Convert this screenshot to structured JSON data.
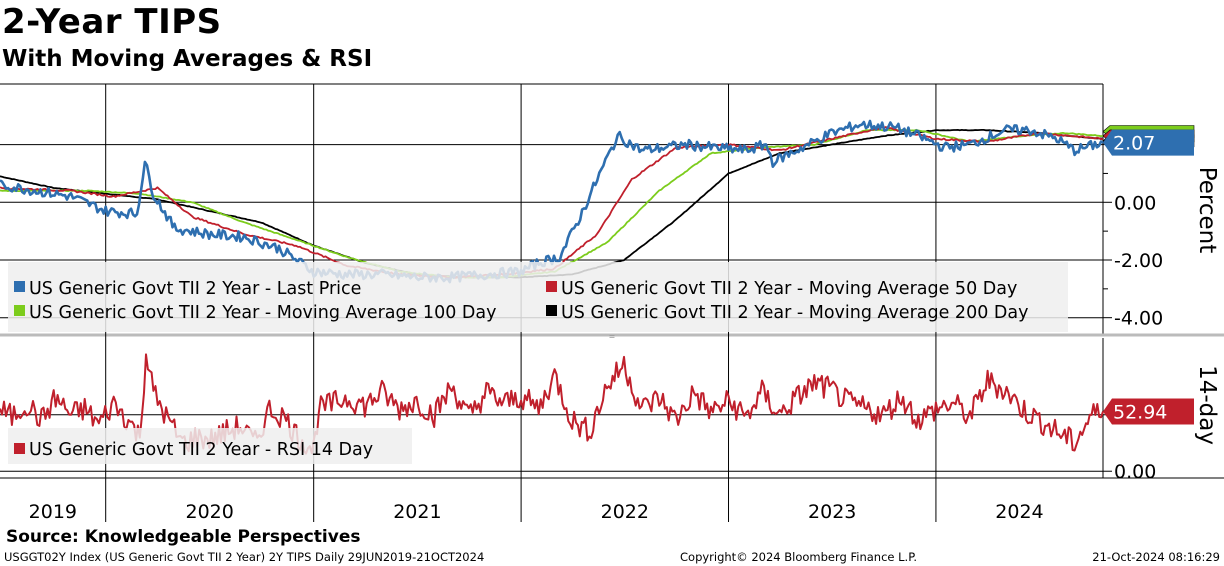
{
  "title": "2-Year TIPS",
  "subtitle": "With Moving Averages & RSI",
  "source": "Source: Knowledgeable Perspectives",
  "footer": {
    "left": "USGGT02Y Index (US Generic Govt TII 2 Year) 2Y TIPS  Daily 29JUN2019-21OCT2024",
    "center": "Copyright© 2024 Bloomberg Finance L.P.",
    "right": "21-Oct-2024 08:16:29"
  },
  "colors": {
    "last_price": "#2e6fb0",
    "ma50": "#c0202c",
    "ma100": "#7ccc1c",
    "ma200": "#000000",
    "rsi": "#c0202c"
  },
  "chart_data": [
    {
      "type": "line",
      "ylabel": "Percent",
      "ylim": [
        -4.6,
        4.1
      ],
      "yticks": [
        "0.00",
        "-2.00",
        "-4.00"
      ],
      "ytick_values": [
        0,
        -2,
        -4
      ],
      "x_range": [
        "2019-06-29",
        "2024-10-21"
      ],
      "x_labels": [
        "2019",
        "2020",
        "2021",
        "2022",
        "2023",
        "2024"
      ],
      "last_value_label": "2.07",
      "grid": true,
      "legend_position": "bottom-left",
      "series": [
        {
          "name": "US Generic Govt TII 2 Year - Last Price",
          "color": "#2e6fb0",
          "x": [
            "2019-06-29",
            "2019-09-01",
            "2019-11-01",
            "2020-01-01",
            "2020-02-25",
            "2020-03-10",
            "2020-03-25",
            "2020-05-01",
            "2020-07-01",
            "2020-09-01",
            "2020-11-01",
            "2021-01-01",
            "2021-03-01",
            "2021-05-01",
            "2021-07-01",
            "2021-09-01",
            "2021-11-01",
            "2022-01-01",
            "2022-02-01",
            "2022-03-10",
            "2022-04-15",
            "2022-05-15",
            "2022-06-20",
            "2022-08-01",
            "2022-10-20",
            "2022-12-01",
            "2023-02-01",
            "2023-03-08",
            "2023-03-20",
            "2023-05-01",
            "2023-07-01",
            "2023-08-20",
            "2023-10-20",
            "2023-12-01",
            "2024-01-15",
            "2024-03-01",
            "2024-05-01",
            "2024-06-15",
            "2024-08-01",
            "2024-09-01",
            "2024-10-21"
          ],
          "values": [
            0.6,
            0.4,
            0.2,
            -0.3,
            -0.4,
            1.4,
            0.3,
            -0.9,
            -1.1,
            -1.2,
            -1.6,
            -2.4,
            -2.5,
            -2.5,
            -2.6,
            -2.6,
            -2.5,
            -2.4,
            -2.1,
            -1.9,
            -0.5,
            0.8,
            2.3,
            1.8,
            2.0,
            1.9,
            1.8,
            2.0,
            1.4,
            1.8,
            2.4,
            2.7,
            2.6,
            2.3,
            1.9,
            2.0,
            2.5,
            2.5,
            2.2,
            1.8,
            2.07
          ]
        },
        {
          "name": "US Generic Govt TII 2 Year - Moving Average 50 Day",
          "color": "#c0202c",
          "x": [
            "2019-06-29",
            "2019-11-01",
            "2020-01-15",
            "2020-04-01",
            "2020-06-01",
            "2020-09-01",
            "2020-12-01",
            "2021-03-01",
            "2021-06-01",
            "2021-09-01",
            "2021-12-01",
            "2022-03-01",
            "2022-05-15",
            "2022-07-15",
            "2022-10-01",
            "2023-01-01",
            "2023-04-01",
            "2023-07-01",
            "2023-10-01",
            "2024-01-01",
            "2024-04-01",
            "2024-07-01",
            "2024-10-21"
          ],
          "values": [
            0.5,
            0.4,
            0.2,
            0.5,
            -0.5,
            -1.1,
            -1.5,
            -2.2,
            -2.5,
            -2.6,
            -2.5,
            -2.3,
            -1.1,
            0.8,
            1.9,
            2.0,
            1.8,
            2.2,
            2.6,
            2.2,
            2.1,
            2.4,
            2.2
          ]
        },
        {
          "name": "US Generic Govt TII 2 Year - Moving Average 100 Day",
          "color": "#7ccc1c",
          "x": [
            "2019-06-29",
            "2019-12-01",
            "2020-03-01",
            "2020-06-01",
            "2020-09-01",
            "2020-12-01",
            "2021-03-01",
            "2021-06-01",
            "2021-09-01",
            "2021-12-01",
            "2022-03-01",
            "2022-06-01",
            "2022-09-01",
            "2022-12-01",
            "2023-03-01",
            "2023-06-01",
            "2023-09-01",
            "2023-12-01",
            "2024-03-01",
            "2024-06-01",
            "2024-08-15",
            "2024-10-21"
          ],
          "values": [
            0.4,
            0.4,
            0.3,
            0.0,
            -0.7,
            -1.3,
            -1.9,
            -2.4,
            -2.6,
            -2.6,
            -2.4,
            -1.4,
            0.4,
            1.7,
            1.9,
            2.0,
            2.5,
            2.5,
            2.1,
            2.3,
            2.4,
            2.3
          ]
        },
        {
          "name": "US Generic Govt TII 2 Year - Moving Average 200 Day",
          "color": "#000000",
          "x": [
            "2019-06-29",
            "2019-10-01",
            "2020-01-01",
            "2020-04-01",
            "2020-07-01",
            "2020-10-01",
            "2021-01-01",
            "2021-04-01",
            "2021-07-01",
            "2021-10-01",
            "2022-01-01",
            "2022-04-01",
            "2022-07-01",
            "2022-10-01",
            "2023-01-01",
            "2023-04-01",
            "2023-07-01",
            "2023-10-01",
            "2024-01-01",
            "2024-04-01",
            "2024-07-01",
            "2024-10-21"
          ],
          "values": [
            0.9,
            0.5,
            0.3,
            0.1,
            -0.3,
            -0.7,
            -1.5,
            -2.1,
            -2.5,
            -2.6,
            -2.6,
            -2.5,
            -2.0,
            -0.6,
            1.0,
            1.7,
            2.0,
            2.3,
            2.5,
            2.5,
            2.4,
            2.2
          ]
        }
      ]
    },
    {
      "type": "line",
      "ylabel": "14-day",
      "ylim": [
        -6,
        118
      ],
      "yticks": [
        "0.00"
      ],
      "ytick_values": [
        0
      ],
      "last_value_label": "52.94",
      "grid": true,
      "legend_position": "bottom-left",
      "series": [
        {
          "name": "US Generic Govt TII 2 Year - RSI 14 Day",
          "color": "#c0202c",
          "x": [
            "2019-06-29",
            "2019-07-20",
            "2019-08-15",
            "2019-09-10",
            "2019-10-05",
            "2019-11-01",
            "2019-11-25",
            "2019-12-20",
            "2020-01-15",
            "2020-02-10",
            "2020-03-01",
            "2020-03-12",
            "2020-03-25",
            "2020-04-20",
            "2020-05-15",
            "2020-06-10",
            "2020-07-05",
            "2020-08-01",
            "2020-08-25",
            "2020-09-20",
            "2020-10-15",
            "2020-11-10",
            "2020-12-05",
            "2021-01-01",
            "2021-01-10",
            "2021-02-05",
            "2021-03-01",
            "2021-04-01",
            "2021-05-01",
            "2021-06-01",
            "2021-07-01",
            "2021-08-01",
            "2021-09-01",
            "2021-10-01",
            "2021-11-01",
            "2021-12-01",
            "2022-01-01",
            "2022-02-01",
            "2022-03-01",
            "2022-04-01",
            "2022-05-01",
            "2022-06-01",
            "2022-07-01",
            "2022-08-01",
            "2022-09-01",
            "2022-10-01",
            "2022-11-01",
            "2022-12-01",
            "2023-01-01",
            "2023-02-01",
            "2023-03-01",
            "2023-04-01",
            "2023-05-01",
            "2023-06-01",
            "2023-07-01",
            "2023-08-01",
            "2023-09-01",
            "2023-10-01",
            "2023-11-01",
            "2023-12-01",
            "2024-01-01",
            "2024-02-01",
            "2024-03-01",
            "2024-04-01",
            "2024-05-01",
            "2024-06-01",
            "2024-07-01",
            "2024-08-01",
            "2024-09-01",
            "2024-10-01",
            "2024-10-21"
          ],
          "values": [
            55,
            48,
            60,
            45,
            65,
            50,
            55,
            42,
            60,
            45,
            30,
            105,
            70,
            45,
            25,
            30,
            28,
            35,
            40,
            25,
            55,
            48,
            30,
            20,
            55,
            60,
            65,
            58,
            70,
            55,
            62,
            50,
            75,
            48,
            70,
            60,
            66,
            55,
            85,
            45,
            35,
            75,
            95,
            55,
            65,
            45,
            70,
            52,
            62,
            48,
            70,
            50,
            65,
            78,
            72,
            60,
            55,
            50,
            66,
            45,
            55,
            60,
            48,
            80,
            72,
            55,
            45,
            35,
            25,
            50,
            52.94
          ]
        }
      ]
    }
  ]
}
